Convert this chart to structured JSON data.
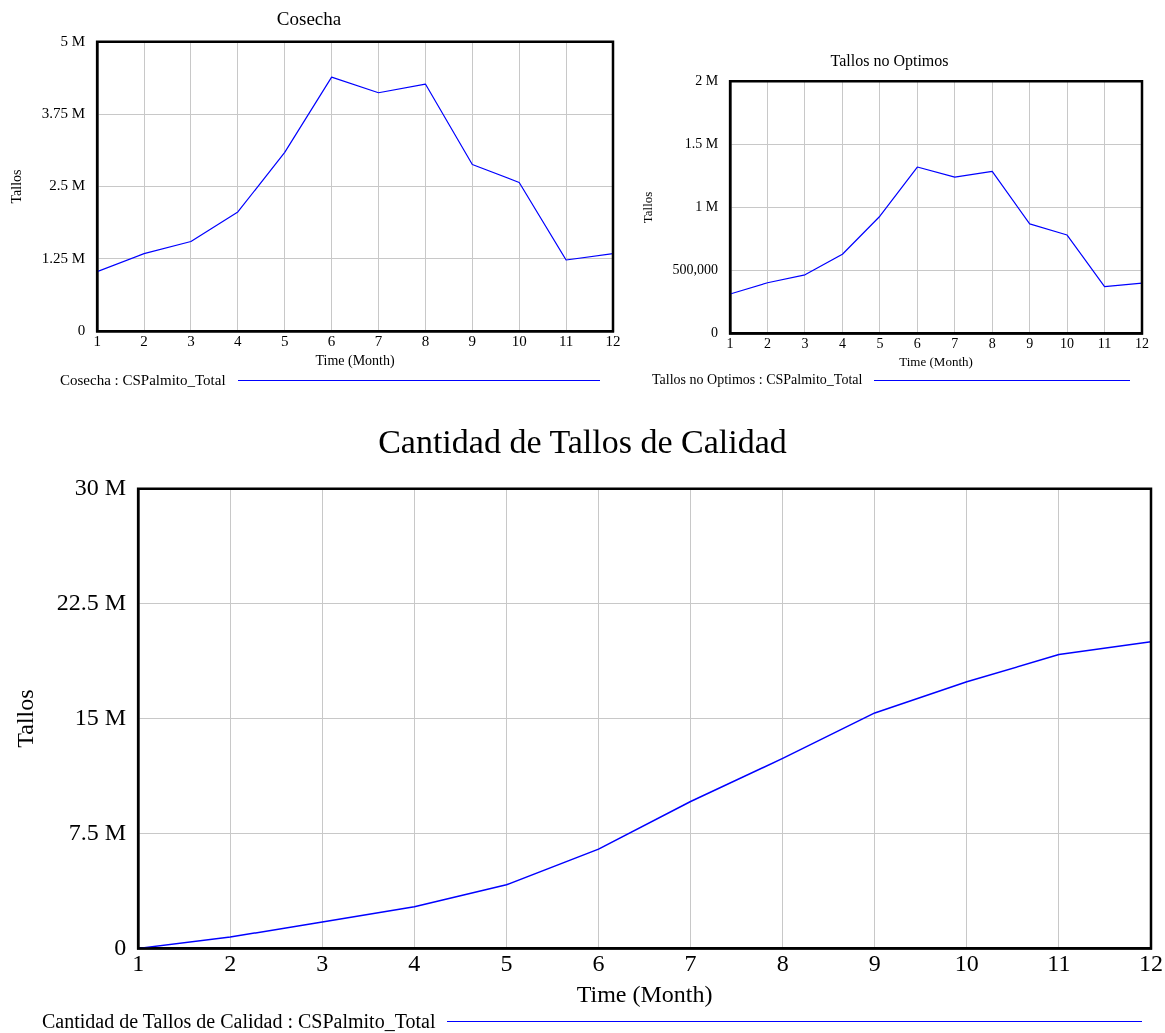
{
  "chart_data": [
    {
      "type": "line",
      "title": "Cosecha",
      "xlabel": "Time (Month)",
      "ylabel": "Tallos",
      "x": [
        1,
        2,
        3,
        4,
        5,
        6,
        7,
        8,
        9,
        10,
        11,
        12
      ],
      "xlim": [
        1,
        12
      ],
      "xticks": [
        1,
        2,
        3,
        4,
        5,
        6,
        7,
        8,
        9,
        10,
        11,
        12
      ],
      "ylim": [
        0,
        5000000
      ],
      "yticks": [
        {
          "value": 0,
          "label": "0"
        },
        {
          "value": 1250000,
          "label": "1.25 M"
        },
        {
          "value": 2500000,
          "label": "2.5 M"
        },
        {
          "value": 3750000,
          "label": "3.75 M"
        },
        {
          "value": 5000000,
          "label": "5 M"
        }
      ],
      "grid": true,
      "legend": "bottom",
      "marker": "none",
      "line_style": "solid",
      "series": [
        {
          "name": "Cosecha : CSPalmito_Total",
          "color": "#0000ff",
          "values": [
            1030000,
            1340000,
            1550000,
            2060000,
            3090000,
            4390000,
            4120000,
            4270000,
            2880000,
            2570000,
            1230000,
            1340000
          ]
        }
      ]
    },
    {
      "type": "line",
      "title": "Tallos no Optimos",
      "xlabel": "Time (Month)",
      "ylabel": "Tallos",
      "x": [
        1,
        2,
        3,
        4,
        5,
        6,
        7,
        8,
        9,
        10,
        11,
        12
      ],
      "xlim": [
        1,
        12
      ],
      "xticks": [
        1,
        2,
        3,
        4,
        5,
        6,
        7,
        8,
        9,
        10,
        11,
        12
      ],
      "ylim": [
        0,
        2000000
      ],
      "yticks": [
        {
          "value": 0,
          "label": "0"
        },
        {
          "value": 500000,
          "label": "500,000"
        },
        {
          "value": 1000000,
          "label": "1 M"
        },
        {
          "value": 1500000,
          "label": "1.5 M"
        },
        {
          "value": 2000000,
          "label": "2 M"
        }
      ],
      "grid": true,
      "legend": "bottom",
      "marker": "none",
      "line_style": "solid",
      "series": [
        {
          "name": "Tallos no Optimos : CSPalmito_Total",
          "color": "#0000ff",
          "values": [
            314000,
            403000,
            466000,
            629000,
            930000,
            1320000,
            1240000,
            1285000,
            869000,
            781000,
            372000,
            400000
          ]
        }
      ]
    },
    {
      "type": "line",
      "title": "Cantidad de Tallos de Calidad",
      "xlabel": "Time (Month)",
      "ylabel": "Tallos",
      "x": [
        1,
        2,
        3,
        4,
        5,
        6,
        7,
        8,
        9,
        10,
        11,
        12
      ],
      "xlim": [
        1,
        12
      ],
      "xticks": [
        1,
        2,
        3,
        4,
        5,
        6,
        7,
        8,
        9,
        10,
        11,
        12
      ],
      "ylim": [
        0,
        30000000
      ],
      "yticks": [
        {
          "value": 0,
          "label": "0"
        },
        {
          "value": 7500000,
          "label": "7.5 M"
        },
        {
          "value": 15000000,
          "label": "15 M"
        },
        {
          "value": 22500000,
          "label": "22.5 M"
        },
        {
          "value": 30000000,
          "label": "30 M"
        }
      ],
      "grid": true,
      "legend": "bottom",
      "marker": "none",
      "line_style": "solid",
      "series": [
        {
          "name": "Cantidad de Tallos de Calidad : CSPalmito_Total",
          "color": "#0000ff",
          "values": [
            0,
            740000,
            1730000,
            2720000,
            4150000,
            6480000,
            9590000,
            12400000,
            15370000,
            17400000,
            19180000,
            20020000
          ]
        }
      ]
    }
  ]
}
